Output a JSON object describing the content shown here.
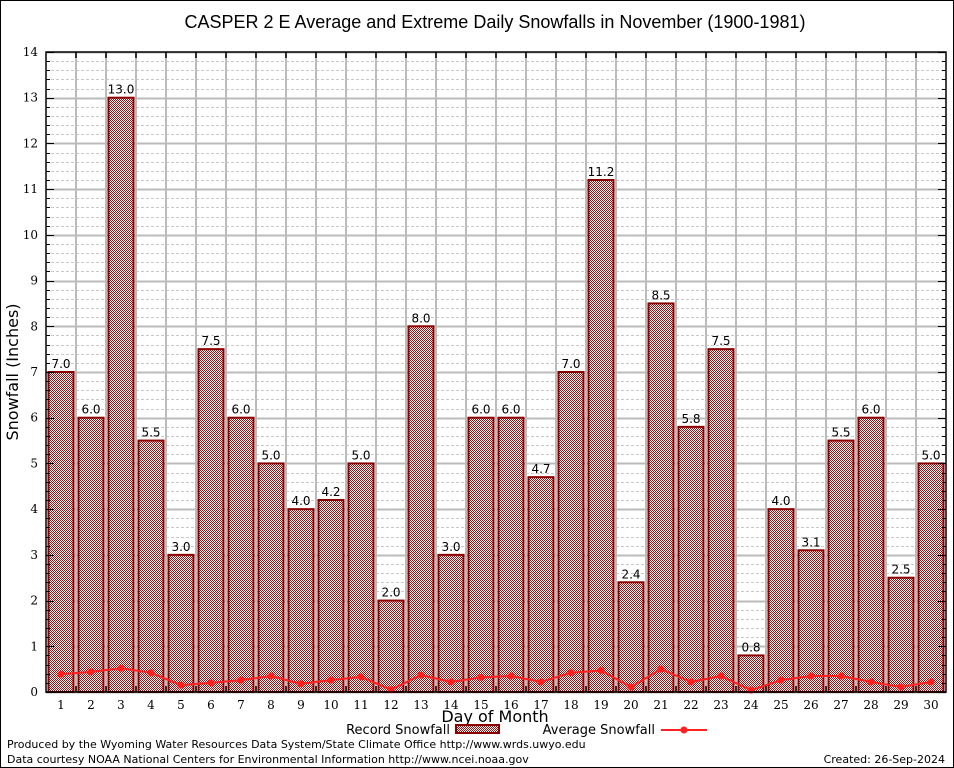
{
  "chart_data": {
    "type": "bar",
    "title": "CASPER 2 E Average and Extreme Daily Snowfalls in November (1900-1981)",
    "xlabel": "Day of Month",
    "ylabel": "Snowfall (Inches)",
    "ylim": [
      0,
      14
    ],
    "yticks": [
      0,
      1,
      2,
      3,
      4,
      5,
      6,
      7,
      8,
      9,
      10,
      11,
      12,
      13,
      14
    ],
    "minor_grid_step": 0.2,
    "grid": true,
    "legend_position": "bottom-center",
    "categories": [
      "1",
      "2",
      "3",
      "4",
      "5",
      "6",
      "7",
      "8",
      "9",
      "10",
      "11",
      "12",
      "13",
      "14",
      "15",
      "16",
      "17",
      "18",
      "19",
      "20",
      "21",
      "22",
      "23",
      "24",
      "25",
      "26",
      "27",
      "28",
      "29",
      "30"
    ],
    "series": [
      {
        "name": "Record Snowfall",
        "type": "bar",
        "color": "#8b0000",
        "pattern_color": "#cc2222",
        "values": [
          7.0,
          6.0,
          13.0,
          5.5,
          3.0,
          7.5,
          6.0,
          5.0,
          4.0,
          4.2,
          5.0,
          2.0,
          8.0,
          3.0,
          6.0,
          6.0,
          4.7,
          7.0,
          11.2,
          2.4,
          8.5,
          5.8,
          7.5,
          0.8,
          4.0,
          3.1,
          5.5,
          6.0,
          2.5,
          5.0
        ],
        "labels": [
          "7.0",
          "6.0",
          "13.0",
          "5.5",
          "3.0",
          "7.5",
          "6.0",
          "5.0",
          "4.0",
          "4.2",
          "5.0",
          "2.0",
          "8.0",
          "3.0",
          "6.0",
          "6.0",
          "4.7",
          "7.0",
          "11.2",
          "2.4",
          "8.5",
          "5.8",
          "7.5",
          "0.8",
          "4.0",
          "3.1",
          "5.5",
          "6.0",
          "2.5",
          "5.0"
        ]
      },
      {
        "name": "Average Snowfall",
        "type": "line",
        "color": "#ff2020",
        "values": [
          0.39,
          0.44,
          0.52,
          0.42,
          0.15,
          0.2,
          0.26,
          0.35,
          0.18,
          0.26,
          0.33,
          0.05,
          0.37,
          0.22,
          0.32,
          0.35,
          0.22,
          0.42,
          0.47,
          0.11,
          0.5,
          0.22,
          0.35,
          0.04,
          0.26,
          0.35,
          0.35,
          0.22,
          0.11,
          0.22
        ]
      }
    ]
  },
  "footer": {
    "line1": "Produced by the Wyoming Water Resources Data System/State Climate Office http://www.wrds.uwyo.edu",
    "line2": "Data courtesy NOAA National Centers for Environmental Information http://www.ncei.noaa.gov",
    "created": "Created:  26-Sep-2024"
  }
}
